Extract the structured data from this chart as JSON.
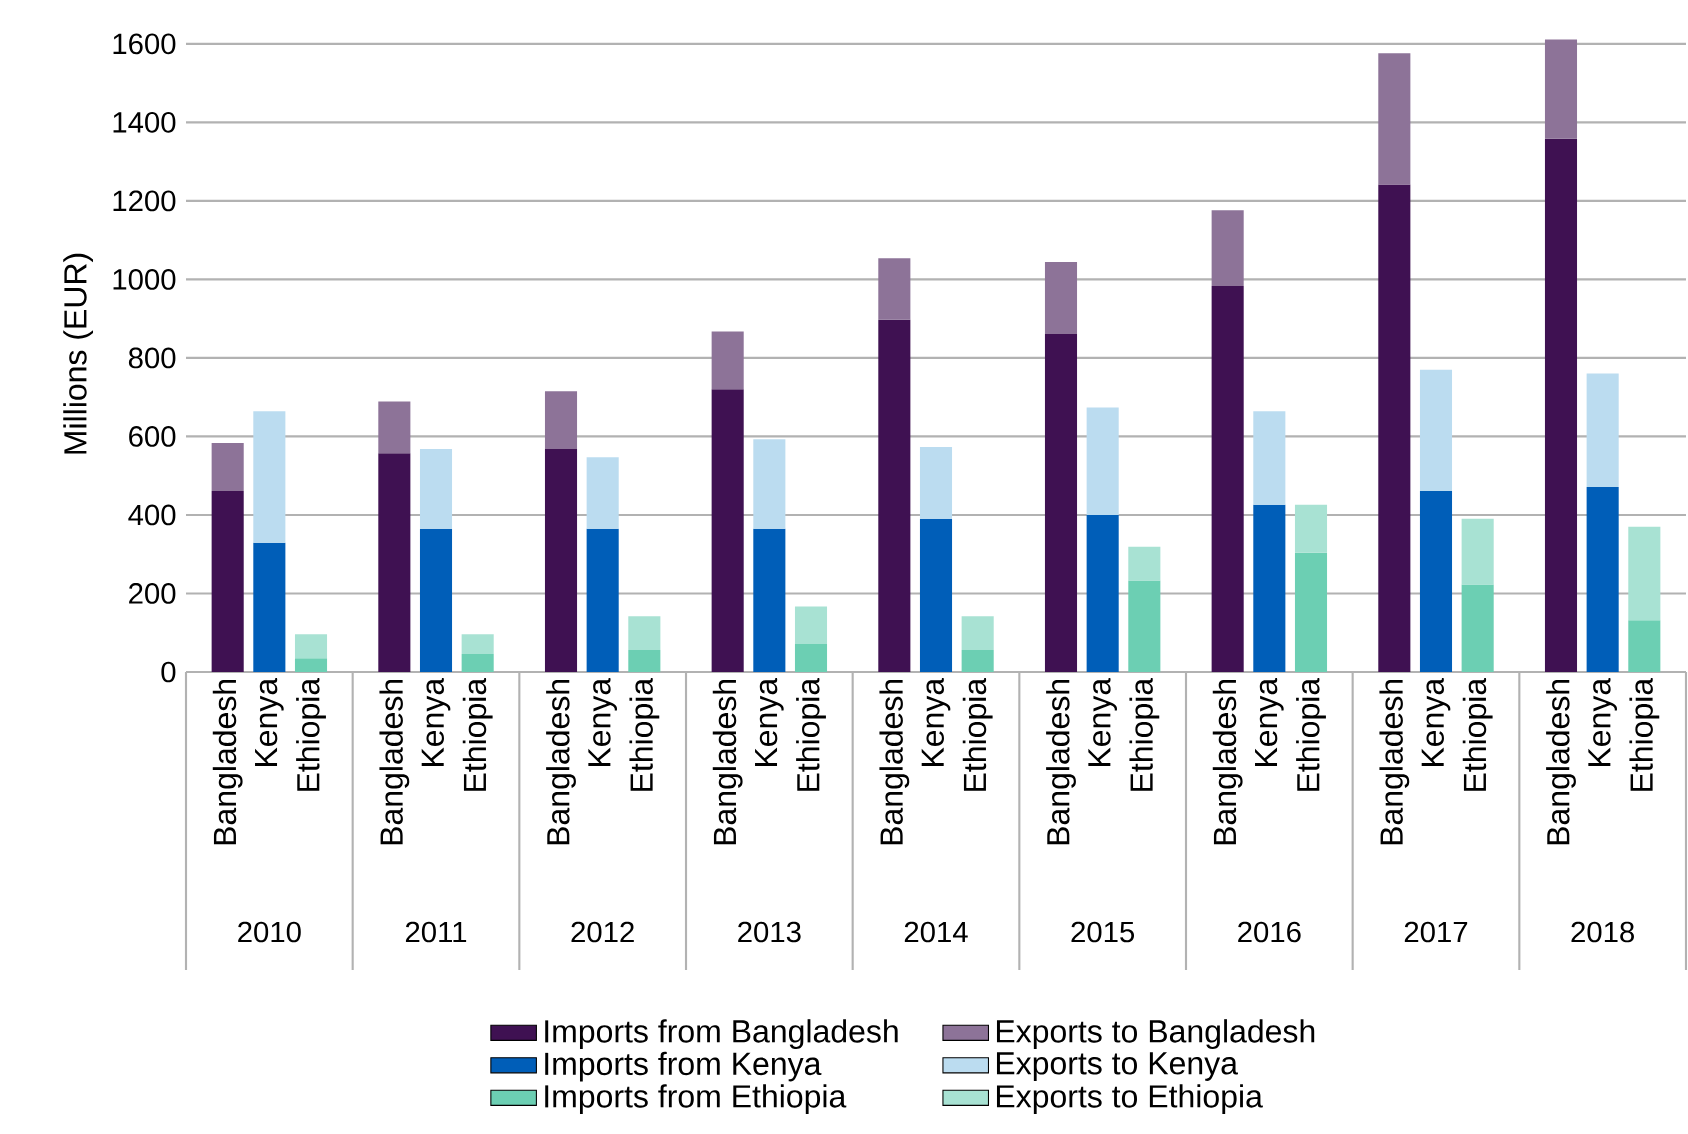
{
  "chart_data": {
    "type": "bar",
    "stacked": true,
    "ylabel": "Millions (EUR)",
    "categories": [
      "Bangladesh",
      "Kenya",
      "Ethiopia",
      "Bangladesh",
      "Kenya",
      "Ethiopia",
      "Bangladesh",
      "Kenya",
      "Ethiopia",
      "Bangladesh",
      "Kenya",
      "Ethiopia",
      "Bangladesh",
      "Kenya",
      "Ethiopia",
      "Bangladesh",
      "Kenya",
      "Ethiopia",
      "Bangladesh",
      "Kenya",
      "Ethiopia",
      "Bangladesh",
      "Kenya",
      "Ethiopia",
      "Bangladesh",
      "Kenya",
      "Ethiopia"
    ],
    "annotations": [
      "2010",
      "2011",
      "2012",
      "2013",
      "2014",
      "2015",
      "2016",
      "2017",
      "2018"
    ],
    "series": [
      {
        "name": "Imports from Bangladesh",
        "color": "#3f1152",
        "values": [
          461,
          null,
          null,
          557,
          null,
          null,
          568,
          null,
          null,
          720,
          null,
          null,
          897,
          null,
          null,
          861,
          null,
          null,
          983,
          null,
          null,
          1242,
          null,
          null,
          1358,
          null,
          null
        ]
      },
      {
        "name": "Exports to Bangladesh",
        "color": "#8d7398",
        "values": [
          122,
          null,
          null,
          132,
          null,
          null,
          147,
          null,
          null,
          147,
          null,
          null,
          157,
          null,
          null,
          183,
          null,
          null,
          193,
          null,
          null,
          334,
          null,
          null,
          253,
          null,
          null
        ]
      },
      {
        "name": "Imports from Kenya",
        "color": "#005eb8",
        "values": [
          null,
          329,
          null,
          null,
          365,
          null,
          null,
          365,
          null,
          null,
          365,
          null,
          null,
          390,
          null,
          null,
          400,
          null,
          null,
          426,
          null,
          null,
          461,
          null,
          null,
          471,
          null
        ]
      },
      {
        "name": "Exports to Kenya",
        "color": "#bbdcf0",
        "values": [
          null,
          335,
          null,
          null,
          203,
          null,
          null,
          182,
          null,
          null,
          228,
          null,
          null,
          183,
          null,
          null,
          274,
          null,
          null,
          238,
          null,
          null,
          309,
          null,
          null,
          289,
          null
        ]
      },
      {
        "name": "Imports from Ethiopia",
        "color": "#6ccfb3",
        "values": [
          null,
          null,
          35,
          null,
          null,
          46,
          null,
          null,
          56,
          null,
          null,
          71,
          null,
          null,
          56,
          null,
          null,
          233,
          null,
          null,
          304,
          null,
          null,
          223,
          null,
          null,
          132
        ]
      },
      {
        "name": "Exports to Ethiopia",
        "color": "#a8e2d3",
        "values": [
          null,
          null,
          61,
          null,
          null,
          50,
          null,
          null,
          86,
          null,
          null,
          96,
          null,
          null,
          86,
          null,
          null,
          86,
          null,
          null,
          122,
          null,
          null,
          167,
          null,
          null,
          238
        ]
      }
    ],
    "ylim": [
      0,
      1620
    ],
    "yticks": [
      0,
      200,
      400,
      600,
      800,
      1000,
      1200,
      1400,
      1600
    ],
    "grid": "y",
    "legend": "bottom"
  }
}
